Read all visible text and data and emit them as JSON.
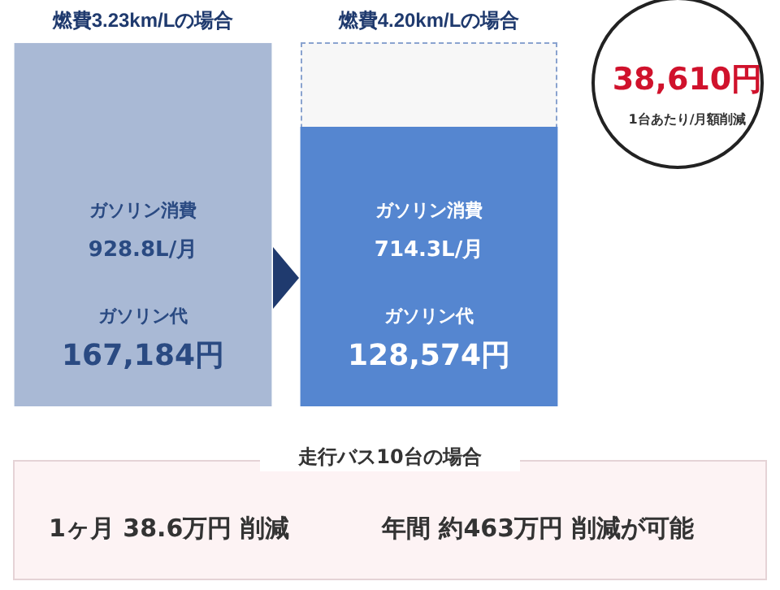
{
  "chart_data": {
    "type": "bar",
    "categories": [
      "燃費3.23km/Lの場合",
      "燃費4.20km/Lの場合"
    ],
    "series": [
      {
        "name": "ガソリン消費",
        "colors": [
          "#a9b9d5",
          "#5586d0"
        ],
        "values": [
          928.8,
          714.3
        ],
        "value_labels": [
          "928.8L/月",
          "714.3L/月"
        ]
      }
    ],
    "annotations": [
      "ガソリン代",
      "167,184円",
      "ガソリン代",
      "128,574円",
      "38,610円",
      "1台あたり/月額削減",
      "走行バス10台の場合",
      "1ヶ月 38.6万円 削減",
      "年間 約463万円 削減が可能"
    ],
    "grid": false,
    "legend": false
  }
}
